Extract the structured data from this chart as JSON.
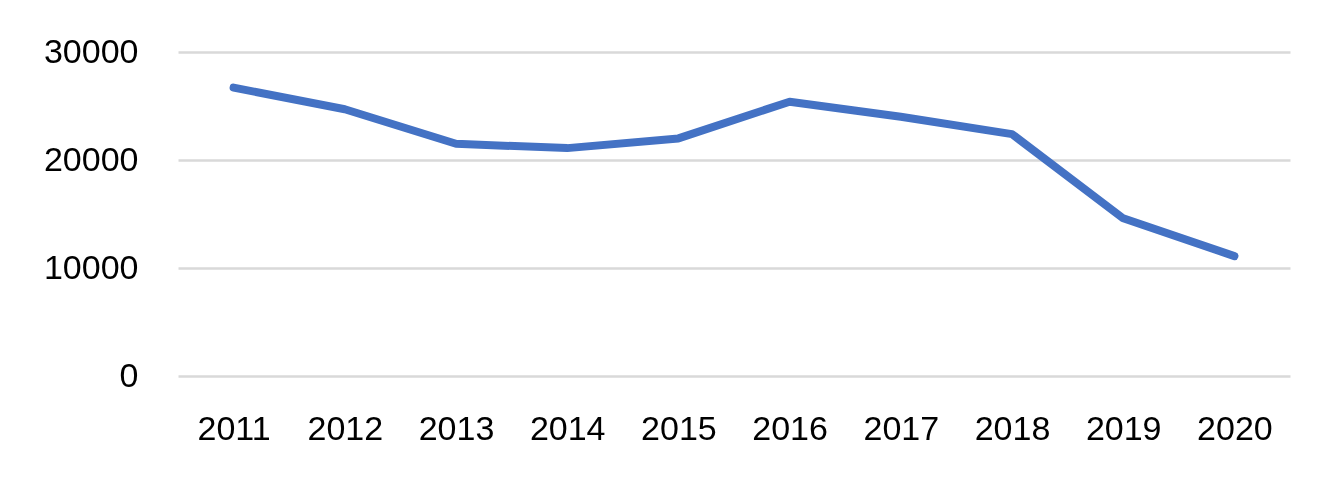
{
  "chart_data": {
    "type": "line",
    "categories": [
      "2011",
      "2012",
      "2013",
      "2014",
      "2015",
      "2016",
      "2017",
      "2018",
      "2019",
      "2020"
    ],
    "series": [
      {
        "color": "#4472c4",
        "values": [
          26700,
          24700,
          21500,
          21100,
          22000,
          25400,
          24000,
          22400,
          14600,
          11100
        ]
      }
    ],
    "ylim": [
      0,
      30000
    ],
    "yticks": [
      0,
      10000,
      20000,
      30000
    ],
    "grid": "y",
    "line_style": "solid",
    "marker": "none"
  }
}
